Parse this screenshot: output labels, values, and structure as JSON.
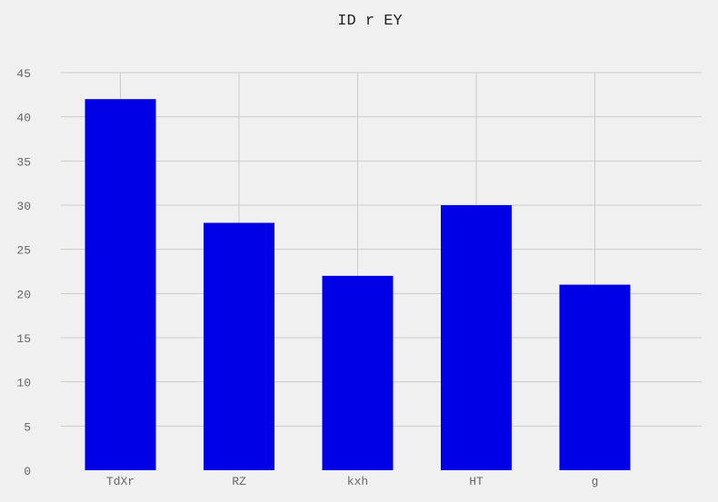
{
  "chart_data": {
    "type": "bar",
    "title": "ID r EY",
    "xlabel": "",
    "ylabel": "",
    "categories": [
      "TdXr",
      "RZ",
      "kxh",
      "HT",
      "g"
    ],
    "values": [
      42,
      28,
      22,
      30,
      21
    ],
    "ylim": [
      0,
      45
    ],
    "yticks": [
      "0",
      "5",
      "10",
      "15",
      "20",
      "25",
      "30",
      "35",
      "40",
      "45"
    ],
    "grid": true,
    "legend": "none",
    "colors": {
      "bar": "#0000e6",
      "grid": "#cccccc",
      "background": "#f0f0f0",
      "tick_text": "#666666"
    }
  }
}
